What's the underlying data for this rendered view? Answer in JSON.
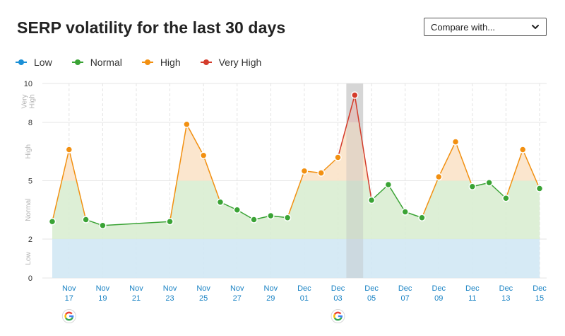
{
  "header": {
    "title": "SERP volatility for the last 30 days",
    "compare_label": "Compare with..."
  },
  "legend": [
    {
      "label": "Low",
      "color": "#1a8fd6"
    },
    {
      "label": "Normal",
      "color": "#3aa335"
    },
    {
      "label": "High",
      "color": "#f29011"
    },
    {
      "label": "Very High",
      "color": "#d43c2c"
    }
  ],
  "colors": {
    "low_band": "#d2e8f4",
    "normal_band": "#d9edd2",
    "high_band": "#fbe3c9",
    "very_high_band": "#f4c6c0",
    "line": "#3aa335",
    "highlight_band": "#e4e4e4"
  },
  "icons": [
    "google-icon",
    "chevron-down-icon"
  ],
  "chart_data": {
    "type": "area",
    "ylim": [
      0,
      10
    ],
    "yticks": [
      0,
      2,
      5,
      8,
      10
    ],
    "zones": [
      {
        "label": "Low",
        "from": 0,
        "to": 2
      },
      {
        "label": "Normal",
        "from": 2,
        "to": 5
      },
      {
        "label": "High",
        "from": 5,
        "to": 8
      },
      {
        "label": "Very High",
        "from": 8,
        "to": 10
      }
    ],
    "x_tick_labels": [
      {
        "day": 17,
        "top": "Nov",
        "bottom": "17"
      },
      {
        "day": 19,
        "top": "Nov",
        "bottom": "19"
      },
      {
        "day": 21,
        "top": "Nov",
        "bottom": "21"
      },
      {
        "day": 23,
        "top": "Nov",
        "bottom": "23"
      },
      {
        "day": 25,
        "top": "Nov",
        "bottom": "25"
      },
      {
        "day": 27,
        "top": "Nov",
        "bottom": "27"
      },
      {
        "day": 29,
        "top": "Nov",
        "bottom": "29"
      },
      {
        "day": 31,
        "top": "Dec",
        "bottom": "01"
      },
      {
        "day": 33,
        "top": "Dec",
        "bottom": "03"
      },
      {
        "day": 35,
        "top": "Dec",
        "bottom": "05"
      },
      {
        "day": 37,
        "top": "Dec",
        "bottom": "07"
      },
      {
        "day": 39,
        "top": "Dec",
        "bottom": "09"
      },
      {
        "day": 41,
        "top": "Dec",
        "bottom": "11"
      },
      {
        "day": 43,
        "top": "Dec",
        "bottom": "13"
      },
      {
        "day": 45,
        "top": "Dec",
        "bottom": "15"
      }
    ],
    "points": [
      {
        "date": "Nov 16",
        "day": 16,
        "value": 2.9
      },
      {
        "date": "Nov 17",
        "day": 17,
        "value": 6.6
      },
      {
        "date": "Nov 18",
        "day": 18,
        "value": 3.0
      },
      {
        "date": "Nov 19",
        "day": 19,
        "value": 2.7
      },
      {
        "date": "Nov 23",
        "day": 23,
        "value": 2.9
      },
      {
        "date": "Nov 24",
        "day": 24,
        "value": 7.9
      },
      {
        "date": "Nov 25",
        "day": 25,
        "value": 6.3
      },
      {
        "date": "Nov 26",
        "day": 26,
        "value": 3.9
      },
      {
        "date": "Nov 27",
        "day": 27,
        "value": 3.5
      },
      {
        "date": "Nov 28",
        "day": 28,
        "value": 3.0
      },
      {
        "date": "Nov 29",
        "day": 29,
        "value": 3.2
      },
      {
        "date": "Nov 30",
        "day": 30,
        "value": 3.1
      },
      {
        "date": "Dec 01",
        "day": 31,
        "value": 5.5
      },
      {
        "date": "Dec 02",
        "day": 32,
        "value": 5.4
      },
      {
        "date": "Dec 03",
        "day": 33,
        "value": 6.2
      },
      {
        "date": "Dec 04",
        "day": 34,
        "value": 9.4
      },
      {
        "date": "Dec 05",
        "day": 35,
        "value": 4.0
      },
      {
        "date": "Dec 06",
        "day": 36,
        "value": 4.8
      },
      {
        "date": "Dec 07",
        "day": 37,
        "value": 3.4
      },
      {
        "date": "Dec 08",
        "day": 38,
        "value": 3.1
      },
      {
        "date": "Dec 09",
        "day": 39,
        "value": 5.2
      },
      {
        "date": "Dec 10",
        "day": 40,
        "value": 7.0
      },
      {
        "date": "Dec 11",
        "day": 41,
        "value": 4.7
      },
      {
        "date": "Dec 12",
        "day": 42,
        "value": 4.9
      },
      {
        "date": "Dec 13",
        "day": 43,
        "value": 4.1
      },
      {
        "date": "Dec 14",
        "day": 44,
        "value": 6.6
      },
      {
        "date": "Dec 15",
        "day": 45,
        "value": 4.6
      }
    ],
    "highlighted_day": 34,
    "google_update_days": [
      17,
      33
    ]
  }
}
